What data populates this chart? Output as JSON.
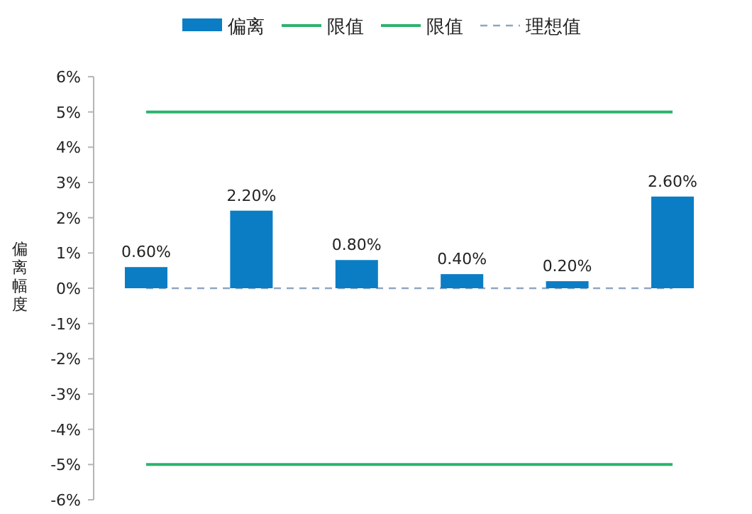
{
  "chart_data": {
    "type": "bar",
    "ylabel": "偏离幅度",
    "categories": [
      null,
      null,
      null,
      null,
      null,
      null
    ],
    "series": [
      {
        "name": "偏离",
        "color": "#0b7dc5",
        "values": [
          0.6,
          2.2,
          0.8,
          0.4,
          0.2,
          2.6
        ],
        "value_labels": [
          "0.60%",
          "2.20%",
          "0.80%",
          "0.40%",
          "0.20%",
          "2.60%"
        ]
      },
      {
        "name": "限值",
        "type": "line",
        "color": "#2cb36d",
        "line_style": "solid",
        "values": [
          5,
          5,
          5,
          5,
          5,
          5
        ]
      },
      {
        "name": "限值",
        "type": "line",
        "color": "#2cb36d",
        "line_style": "solid",
        "values": [
          -5,
          -5,
          -5,
          -5,
          -5,
          -5
        ]
      },
      {
        "name": "理想值",
        "type": "line",
        "color": "#8fa6c2",
        "line_style": "dashed",
        "values": [
          0,
          0,
          0,
          0,
          0,
          0
        ]
      }
    ],
    "ylim": [
      -6,
      6
    ],
    "yticks": [
      {
        "value": 6,
        "label": "6%"
      },
      {
        "value": 5,
        "label": "5%"
      },
      {
        "value": 4,
        "label": "4%"
      },
      {
        "value": 3,
        "label": "3%"
      },
      {
        "value": 2,
        "label": "2%"
      },
      {
        "value": 1,
        "label": "1%"
      },
      {
        "value": 0,
        "label": "0%"
      },
      {
        "value": -1,
        "label": "-1%"
      },
      {
        "value": -2,
        "label": "-2%"
      },
      {
        "value": -3,
        "label": "-3%"
      },
      {
        "value": -4,
        "label": "-4%"
      },
      {
        "value": -5,
        "label": "-5%"
      },
      {
        "value": -6,
        "label": "-6%"
      }
    ],
    "legend": "top",
    "grid": false,
    "tick_labels": "y"
  }
}
